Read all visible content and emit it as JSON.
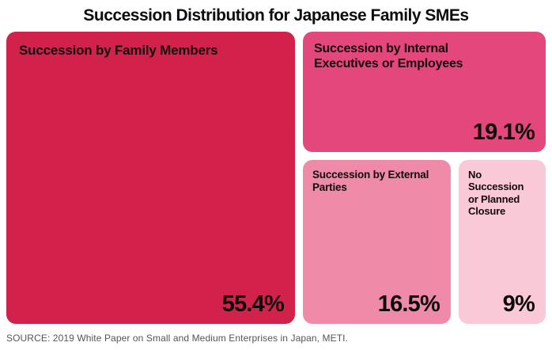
{
  "title": "Succession Distribution for Japanese Family SMEs",
  "source_note": "SOURCE: 2019 White Paper on Small and Medium Enterprises in Japan, METI.",
  "chart_data": {
    "type": "treemap",
    "title": "Succession Distribution for Japanese Family SMEs",
    "unit": "%",
    "legend_position": "none",
    "source": "SOURCE: 2019 White Paper on Small and Medium Enterprises in Japan, METI.",
    "segments": [
      {
        "label": "Succession by Family Members",
        "value": 55.4,
        "display_value": "55.4%",
        "color": "#D2214B"
      },
      {
        "label": "Succession by Internal Executives or Employees",
        "value": 19.1,
        "display_value": "19.1%",
        "color": "#E4477B"
      },
      {
        "label": "Succession by External Parties",
        "value": 16.5,
        "display_value": "16.5%",
        "color": "#EF8BA9"
      },
      {
        "label": "No Succession or Planned Closure",
        "value": 9,
        "display_value": "9%",
        "color": "#F9C9D8"
      }
    ]
  }
}
